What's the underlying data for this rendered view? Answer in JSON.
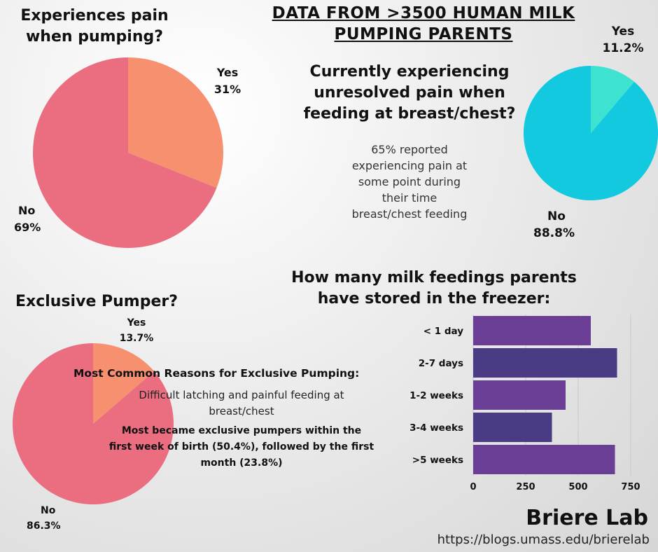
{
  "banner": {
    "line1": "DATA FROM >3500 HUMAN MILK",
    "line2": "PUMPING PARENTS"
  },
  "pain_pumping": {
    "title_line1": "Experiences pain",
    "title_line2": "when pumping?",
    "yes_label": "Yes",
    "yes_value": "31%",
    "no_label": "No",
    "no_value": "69%"
  },
  "unresolved_pain": {
    "title_line1": "Currently experiencing",
    "title_line2": "unresolved pain when",
    "title_line3": "feeding at breast/chest?",
    "yes_label": "Yes",
    "yes_value": "11.2%",
    "no_label": "No",
    "no_value": "88.8%",
    "note": [
      "65% reported",
      "experiencing pain at",
      "some point during",
      "their time",
      "breast/chest feeding"
    ]
  },
  "exclusive": {
    "title": "Exclusive Pumper?",
    "yes_label": "Yes",
    "yes_value": "13.7%",
    "no_label": "No",
    "no_value": "86.3%",
    "reasons_title": "Most Common Reasons for Exclusive Pumping:",
    "reason_line1": "Difficult latching and painful feeding at",
    "reason_line2": "breast/chest",
    "timing_line1": "Most became exclusive pumpers within the",
    "timing_line2": "first week of birth (50.4%), followed by the first",
    "timing_line3": "month (23.8%)"
  },
  "freezer": {
    "title_line1": "How many milk feedings parents",
    "title_line2": "have stored in the freezer:"
  },
  "footer": {
    "brand": "Briere Lab",
    "url": "https://blogs.umass.edu/brierelab"
  },
  "colors": {
    "salmon": "#F7906E",
    "pink": "#EB6E80",
    "teal_dark": "#12C9DF",
    "teal_light": "#3DE3D0",
    "purple_a": "#6A3E94",
    "purple_b": "#4B3B84"
  },
  "chart_data": [
    {
      "type": "pie",
      "title": "Experiences pain when pumping?",
      "labels": [
        "Yes",
        "No"
      ],
      "values": [
        31,
        69
      ]
    },
    {
      "type": "pie",
      "title": "Currently experiencing unresolved pain when feeding at breast/chest?",
      "labels": [
        "Yes",
        "No"
      ],
      "values": [
        11.2,
        88.8
      ]
    },
    {
      "type": "pie",
      "title": "Exclusive Pumper?",
      "labels": [
        "Yes",
        "No"
      ],
      "values": [
        13.7,
        86.3
      ]
    },
    {
      "type": "bar",
      "orientation": "horizontal",
      "title": "How many milk feedings parents have stored in the freezer:",
      "categories": [
        "< 1 day",
        "2-7 days",
        "1-2 weeks",
        "3-4 weeks",
        ">5 weeks"
      ],
      "values": [
        560,
        685,
        440,
        375,
        675
      ],
      "xlim": [
        0,
        750
      ],
      "xticks": [
        "0",
        "250",
        "500",
        "750"
      ],
      "grid": true
    }
  ]
}
